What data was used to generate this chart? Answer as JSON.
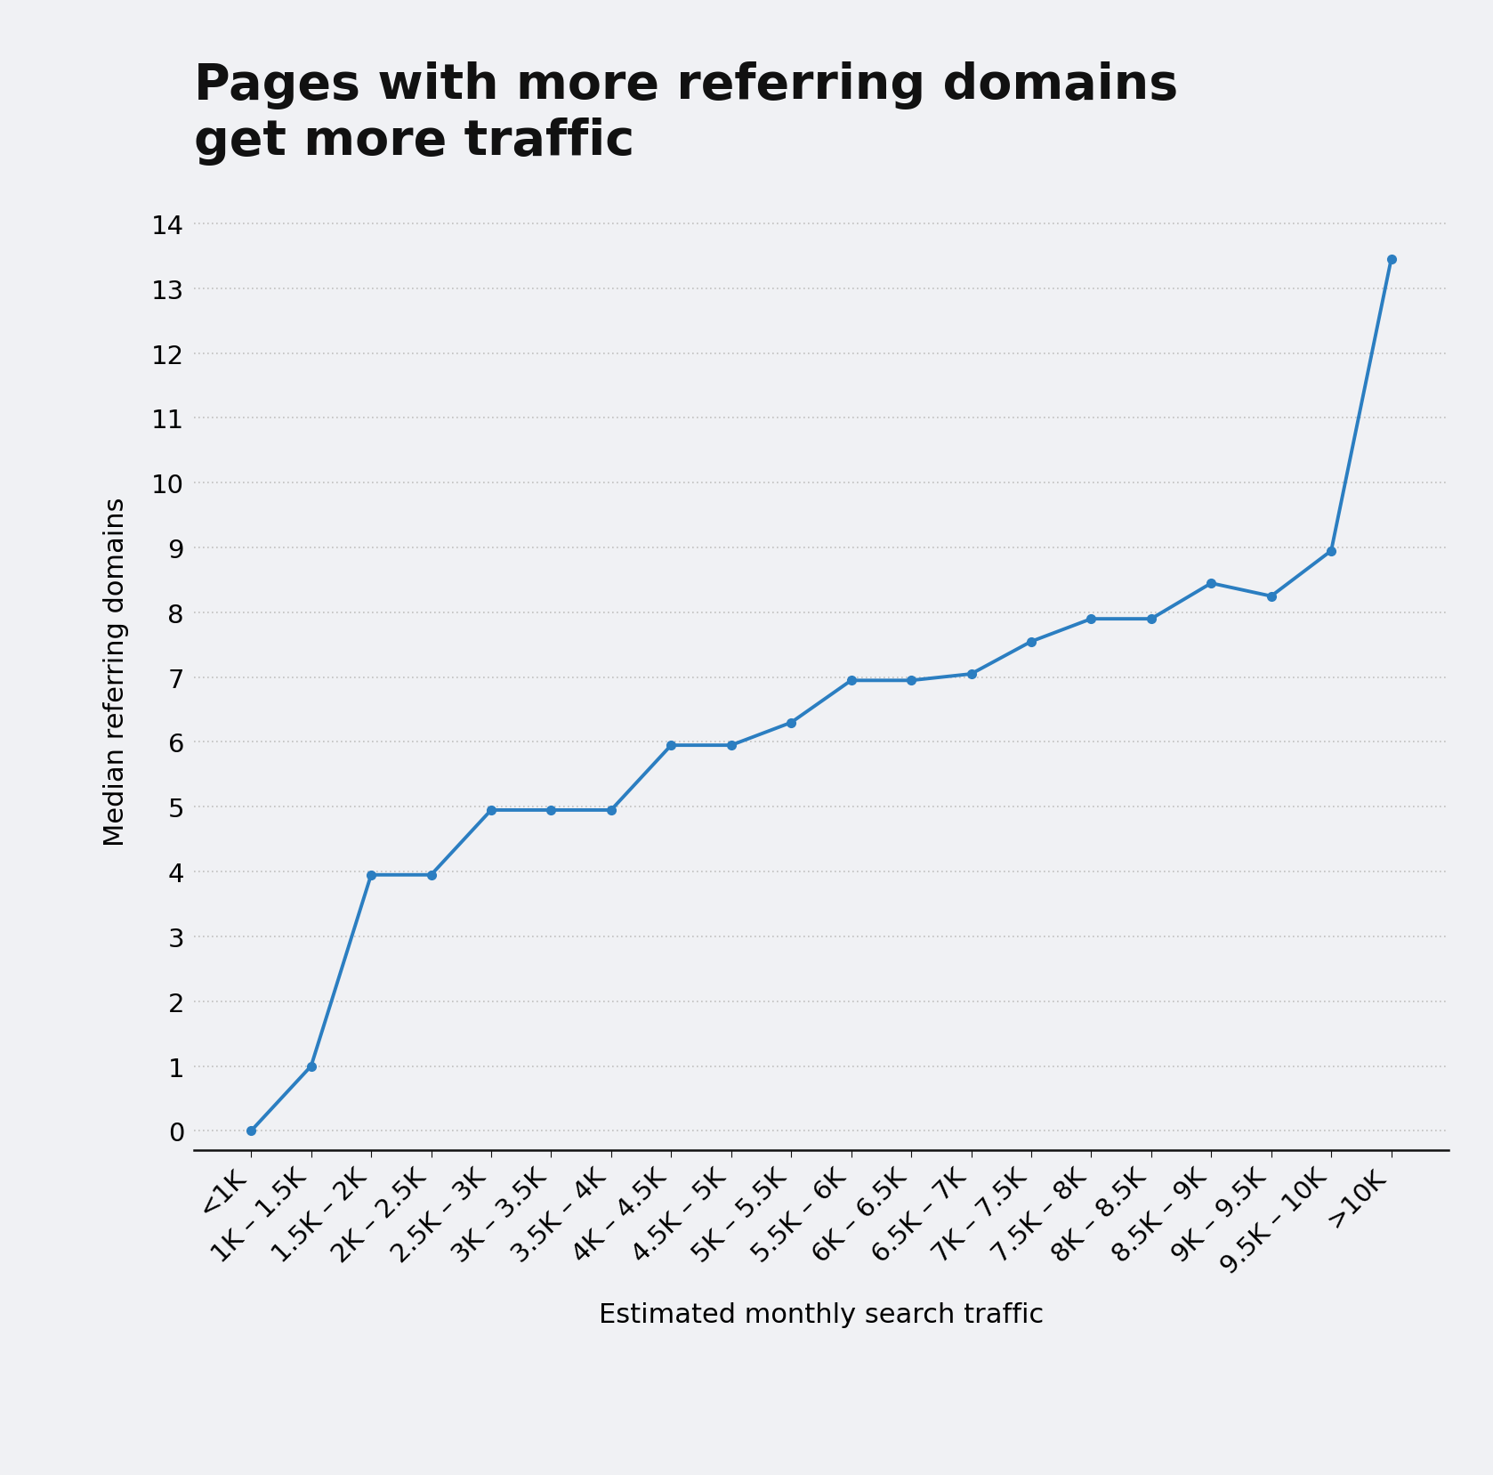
{
  "title": "Pages with more referring domains\nget more traffic",
  "xlabel": "Estimated monthly search traffic",
  "ylabel": "Median referring domains",
  "background_color": "#f0f1f4",
  "line_color": "#2b7ec1",
  "marker_color": "#2b7ec1",
  "categories": [
    "<1K",
    "1K – 1.5K",
    "1.5K – 2K",
    "2K – 2.5K",
    "2.5K – 3K",
    "3K – 3.5K",
    "3.5K – 4K",
    "4K – 4.5K",
    "4.5K – 5K",
    "5K – 5.5K",
    "5.5K – 6K",
    "6K – 6.5K",
    "6.5K – 7K",
    "7K – 7.5K",
    "7.5K – 8K",
    "8K – 8.5K",
    "8.5K – 9K",
    "9K – 9.5K",
    "9.5K – 10K",
    ">10K"
  ],
  "values": [
    0.0,
    1.0,
    3.95,
    3.95,
    4.95,
    4.95,
    4.95,
    5.95,
    5.95,
    6.3,
    6.95,
    6.95,
    7.05,
    7.55,
    7.9,
    7.9,
    8.45,
    8.25,
    8.95,
    13.45
  ],
  "ylim": [
    -0.3,
    14.5
  ],
  "yticks": [
    0,
    1,
    2,
    3,
    4,
    5,
    6,
    7,
    8,
    9,
    10,
    11,
    12,
    13,
    14
  ],
  "title_fontsize": 40,
  "axis_label_fontsize": 22,
  "tick_fontsize": 21,
  "grid_color": "#c0c0c0",
  "axis_line_color": "#111111"
}
